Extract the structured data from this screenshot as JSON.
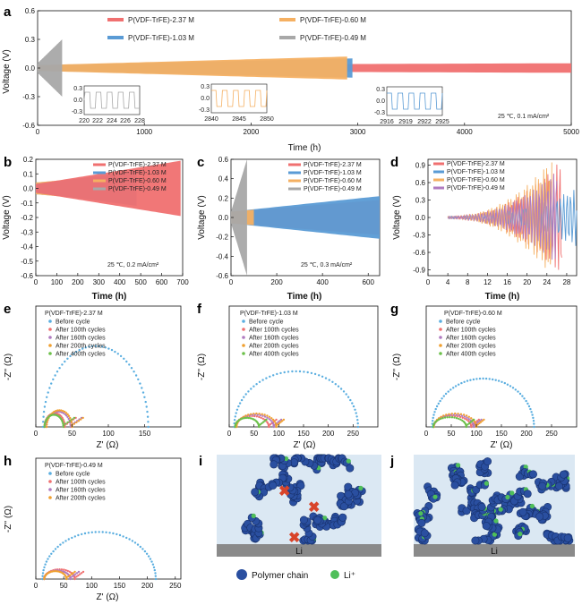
{
  "panels": {
    "a": {
      "label": "a",
      "ylabel": "Voltage (V)",
      "xlabel": "Time (h)",
      "condition": "25 ℃, 0.1 mA/cm²",
      "legend": [
        "P(VDF-TrFE)-2.37 M",
        "P(VDF-TrFE)-0.60 M",
        "P(VDF-TrFE)-1.03 M",
        "P(VDF-TrFE)-0.49 M"
      ],
      "inset1": {
        "xticks": [
          "220",
          "222",
          "224",
          "226",
          "228"
        ],
        "yticks": [
          "0.3",
          "0.0",
          "-0.3"
        ]
      },
      "inset2": {
        "xticks": [
          "2840",
          "2845",
          "2850"
        ],
        "yticks": [
          "0.3",
          "0.0",
          "-0.3"
        ]
      },
      "inset3": {
        "xticks": [
          "2916",
          "2919",
          "2922",
          "2925"
        ],
        "yticks": [
          "0.3",
          "0.0",
          "-0.3"
        ]
      }
    },
    "b": {
      "label": "b",
      "ylabel": "Voltage (V)",
      "xlabel": "Time (h)",
      "condition": "25 ℃, 0.2 mA/cm²",
      "legend": [
        "P(VDF-TrFE)-2.37 M",
        "P(VDF-TrFE)-1.03 M",
        "P(VDF-TrFE)-0.60 M",
        "P(VDF-TrFE)-0.49 M"
      ]
    },
    "c": {
      "label": "c",
      "ylabel": "Voltage (V)",
      "xlabel": "Time (h)",
      "condition": "25 ℃, 0.3 mA/cm²",
      "legend": [
        "P(VDF-TrFE)-2.37 M",
        "P(VDF-TrFE)-1.03 M",
        "P(VDF-TrFE)-0.60 M",
        "P(VDF-TrFE)-0.49 M"
      ]
    },
    "d": {
      "label": "d",
      "ylabel": "Voltage (V)",
      "xlabel": "Time (h)",
      "legend": [
        "P(VDF-TrFE)-2.37 M",
        "P(VDF-TrFE)-1.03 M",
        "P(VDF-TrFE)-0.60 M",
        "P(VDF-TrFE)-0.49 M"
      ]
    },
    "e": {
      "label": "e",
      "title": "P(VDF-TrFE)-2.37 M",
      "xlabel": "Z' (Ω)",
      "ylabel": "-Z'' (Ω)",
      "legend": [
        "Before cycle",
        "After 100th cycles",
        "After 160th cycles",
        "After 200th cycles",
        "After 400th cycles"
      ]
    },
    "f": {
      "label": "f",
      "title": "P(VDF-TrFE)-1.03 M",
      "xlabel": "Z' (Ω)",
      "ylabel": "-Z'' (Ω)",
      "legend": [
        "Before cycle",
        "After 100th cycles",
        "After 160th cycles",
        "After 200th cycles",
        "After 400th cycles"
      ]
    },
    "g": {
      "label": "g",
      "title": "P(VDF-TrFE)-0.60 M",
      "xlabel": "Z' (Ω)",
      "ylabel": "-Z'' (Ω)",
      "legend": [
        "Before cycle",
        "After 100th cycles",
        "After 160th cycles",
        "After 200th cycles",
        "After 400th cycles"
      ]
    },
    "h": {
      "label": "h",
      "title": "P(VDF-TrFE)-0.49 M",
      "xlabel": "Z' (Ω)",
      "ylabel": "-Z'' (Ω)",
      "legend": [
        "Before cycle",
        "After 100th cycles",
        "After 160th cycles",
        "After 200th cycles"
      ]
    },
    "i": {
      "label": "i",
      "li_label": "Li"
    },
    "j": {
      "label": "j",
      "li_label": "Li"
    }
  },
  "schematic_legend": {
    "polymer": "Polymer chain",
    "li_ion": "Li⁺"
  },
  "colors": {
    "m237": "#f07070",
    "m103": "#5a9bd5",
    "m060": "#f5b062",
    "m049": "#a8a8a8",
    "before": "#5aaee0",
    "c100": "#f07070",
    "c160": "#b07bc0",
    "c200": "#f0a030",
    "c400": "#6cc04a"
  },
  "chart_data": [
    {
      "panel": "a",
      "type": "line",
      "title": "",
      "xlabel": "Time (h)",
      "ylabel": "Voltage (V)",
      "xlim": [
        0,
        5000
      ],
      "ylim": [
        -0.6,
        0.6
      ],
      "xticks": [
        0,
        1000,
        2000,
        3000,
        4000,
        5000
      ],
      "yticks": [
        -0.6,
        -0.3,
        0.0,
        0.3,
        0.6
      ],
      "series": [
        {
          "name": "P(VDF-TrFE)-2.37 M",
          "x": [
            0,
            5000
          ],
          "amp": [
            0.03,
            0.05
          ],
          "range_h": [
            0,
            5000
          ]
        },
        {
          "name": "P(VDF-TrFE)-0.60 M",
          "x": [
            0,
            2900
          ],
          "amp": [
            0.03,
            0.12
          ],
          "range_h": [
            0,
            2900
          ]
        },
        {
          "name": "P(VDF-TrFE)-1.03 M",
          "x": [
            0,
            2950
          ],
          "amp": [
            0.03,
            0.1
          ],
          "range_h": [
            0,
            2950
          ]
        },
        {
          "name": "P(VDF-TrFE)-0.49 M",
          "x": [
            0,
            230
          ],
          "amp": [
            0.05,
            0.3
          ],
          "range_h": [
            0,
            230
          ]
        }
      ]
    },
    {
      "panel": "b",
      "type": "line",
      "xlabel": "Time (h)",
      "ylabel": "Voltage (V)",
      "xlim": [
        0,
        700
      ],
      "ylim": [
        -0.6,
        0.2
      ],
      "xticks": [
        0,
        100,
        200,
        300,
        400,
        500,
        600,
        700
      ],
      "yticks": [
        -0.6,
        -0.5,
        -0.4,
        -0.3,
        -0.2,
        -0.1,
        0.0,
        0.1,
        0.2
      ],
      "series": [
        {
          "name": "P(VDF-TrFE)-2.37 M",
          "range_h": [
            0,
            690
          ],
          "amp": [
            0.03,
            0.19
          ]
        },
        {
          "name": "P(VDF-TrFE)-1.03 M",
          "range_h": [
            0,
            480
          ],
          "amp": [
            0.03,
            0.12
          ]
        },
        {
          "name": "P(VDF-TrFE)-0.60 M",
          "range_h": [
            0,
            150
          ],
          "amp": [
            0.04,
            0.06
          ]
        },
        {
          "name": "P(VDF-TrFE)-0.49 M",
          "range_h": [
            0,
            80
          ],
          "amp": [
            0.04,
            0.05
          ]
        }
      ]
    },
    {
      "panel": "c",
      "type": "line",
      "xlabel": "Time (h)",
      "ylabel": "Voltage (V)",
      "xlim": [
        0,
        650
      ],
      "ylim": [
        -0.6,
        0.6
      ],
      "xticks": [
        0,
        200,
        400,
        600
      ],
      "yticks": [
        -0.6,
        -0.4,
        -0.2,
        0.0,
        0.2,
        0.4,
        0.6
      ],
      "series": [
        {
          "name": "P(VDF-TrFE)-2.37 M",
          "range_h": [
            0,
            650
          ],
          "amp": [
            0.06,
            0.18
          ]
        },
        {
          "name": "P(VDF-TrFE)-1.03 M",
          "range_h": [
            0,
            650
          ],
          "amp": [
            0.06,
            0.22
          ]
        },
        {
          "name": "P(VDF-TrFE)-0.60 M",
          "range_h": [
            0,
            100
          ],
          "amp": [
            0.06,
            0.08
          ]
        },
        {
          "name": "P(VDF-TrFE)-0.49 M",
          "range_h": [
            0,
            70
          ],
          "amp": [
            0.06,
            0.6
          ]
        }
      ]
    },
    {
      "panel": "d",
      "type": "line",
      "xlabel": "Time (h)",
      "ylabel": "Voltage (V)",
      "xlim": [
        0,
        30
      ],
      "ylim": [
        -1.0,
        1.0
      ],
      "xticks": [
        0,
        4,
        8,
        12,
        16,
        20,
        24,
        28
      ],
      "yticks": [
        -0.9,
        -0.6,
        -0.3,
        0.0,
        0.3,
        0.6,
        0.9
      ],
      "series": [
        {
          "name": "P(VDF-TrFE)-2.37 M",
          "range_h": [
            4,
            27
          ],
          "amp": [
            0.02,
            1.0
          ]
        },
        {
          "name": "P(VDF-TrFE)-1.03 M",
          "range_h": [
            4,
            30
          ],
          "amp": [
            0.02,
            0.5
          ]
        },
        {
          "name": "P(VDF-TrFE)-0.60 M",
          "range_h": [
            4,
            25
          ],
          "amp": [
            0.02,
            1.0
          ]
        },
        {
          "name": "P(VDF-TrFE)-0.49 M",
          "range_h": [
            4,
            26
          ],
          "amp": [
            0.02,
            0.8
          ]
        }
      ]
    },
    {
      "panel": "e",
      "type": "scatter",
      "xlabel": "Z' (Ω)",
      "ylabel": "-Z'' (Ω)",
      "xlim": [
        0,
        200
      ],
      "ylim": [
        0,
        160
      ],
      "xticks": [
        0,
        50,
        100,
        150
      ],
      "series": [
        {
          "name": "Before cycle",
          "arc": [
            10,
            155,
            107
          ]
        },
        {
          "name": "After 100th cycles",
          "arc": [
            12,
            40,
            18
          ]
        },
        {
          "name": "After 160th cycles",
          "arc": [
            14,
            48,
            20
          ]
        },
        {
          "name": "After 200th cycles",
          "arc": [
            15,
            50,
            22
          ]
        },
        {
          "name": "After 400th cycles",
          "arc": [
            12,
            38,
            16
          ]
        }
      ]
    },
    {
      "panel": "f",
      "type": "scatter",
      "xlabel": "Z' (Ω)",
      "ylabel": "-Z'' (Ω)",
      "xlim": [
        0,
        300
      ],
      "ylim": [
        0,
        200
      ],
      "xticks": [
        0,
        50,
        100,
        150,
        200,
        250
      ],
      "series": [
        {
          "name": "Before cycle",
          "arc": [
            10,
            260,
            92
          ]
        },
        {
          "name": "After 100th cycles",
          "arc": [
            12,
            80,
            18
          ]
        },
        {
          "name": "After 160th cycles",
          "arc": [
            14,
            90,
            20
          ]
        },
        {
          "name": "After 200th cycles",
          "arc": [
            15,
            95,
            22
          ]
        },
        {
          "name": "After 400th cycles",
          "arc": [
            12,
            60,
            15
          ]
        }
      ]
    },
    {
      "panel": "g",
      "type": "scatter",
      "xlabel": "Z' (Ω)",
      "ylabel": "-Z'' (Ω)",
      "xlim": [
        0,
        300
      ],
      "ylim": [
        0,
        200
      ],
      "xticks": [
        0,
        50,
        100,
        150,
        200,
        250
      ],
      "series": [
        {
          "name": "Before cycle",
          "arc": [
            12,
            215,
            80
          ]
        },
        {
          "name": "After 100th cycles",
          "arc": [
            15,
            90,
            18
          ]
        },
        {
          "name": "After 160th cycles",
          "arc": [
            15,
            95,
            20
          ]
        },
        {
          "name": "After 200th cycles",
          "arc": [
            15,
            100,
            22
          ]
        },
        {
          "name": "After 400th cycles",
          "arc": [
            14,
            80,
            16
          ]
        }
      ]
    },
    {
      "panel": "h",
      "type": "scatter",
      "xlabel": "Z' (Ω)",
      "ylabel": "-Z'' (Ω)",
      "xlim": [
        0,
        260
      ],
      "ylim": [
        0,
        200
      ],
      "xticks": [
        0,
        50,
        100,
        150,
        200,
        250
      ],
      "series": [
        {
          "name": "Before cycle",
          "arc": [
            12,
            215,
            78
          ]
        },
        {
          "name": "After 100th cycles",
          "arc": [
            15,
            70,
            16
          ]
        },
        {
          "name": "After 160th cycles",
          "arc": [
            15,
            62,
            14
          ]
        },
        {
          "name": "After 200th cycles",
          "arc": [
            15,
            55,
            13
          ]
        }
      ]
    }
  ]
}
